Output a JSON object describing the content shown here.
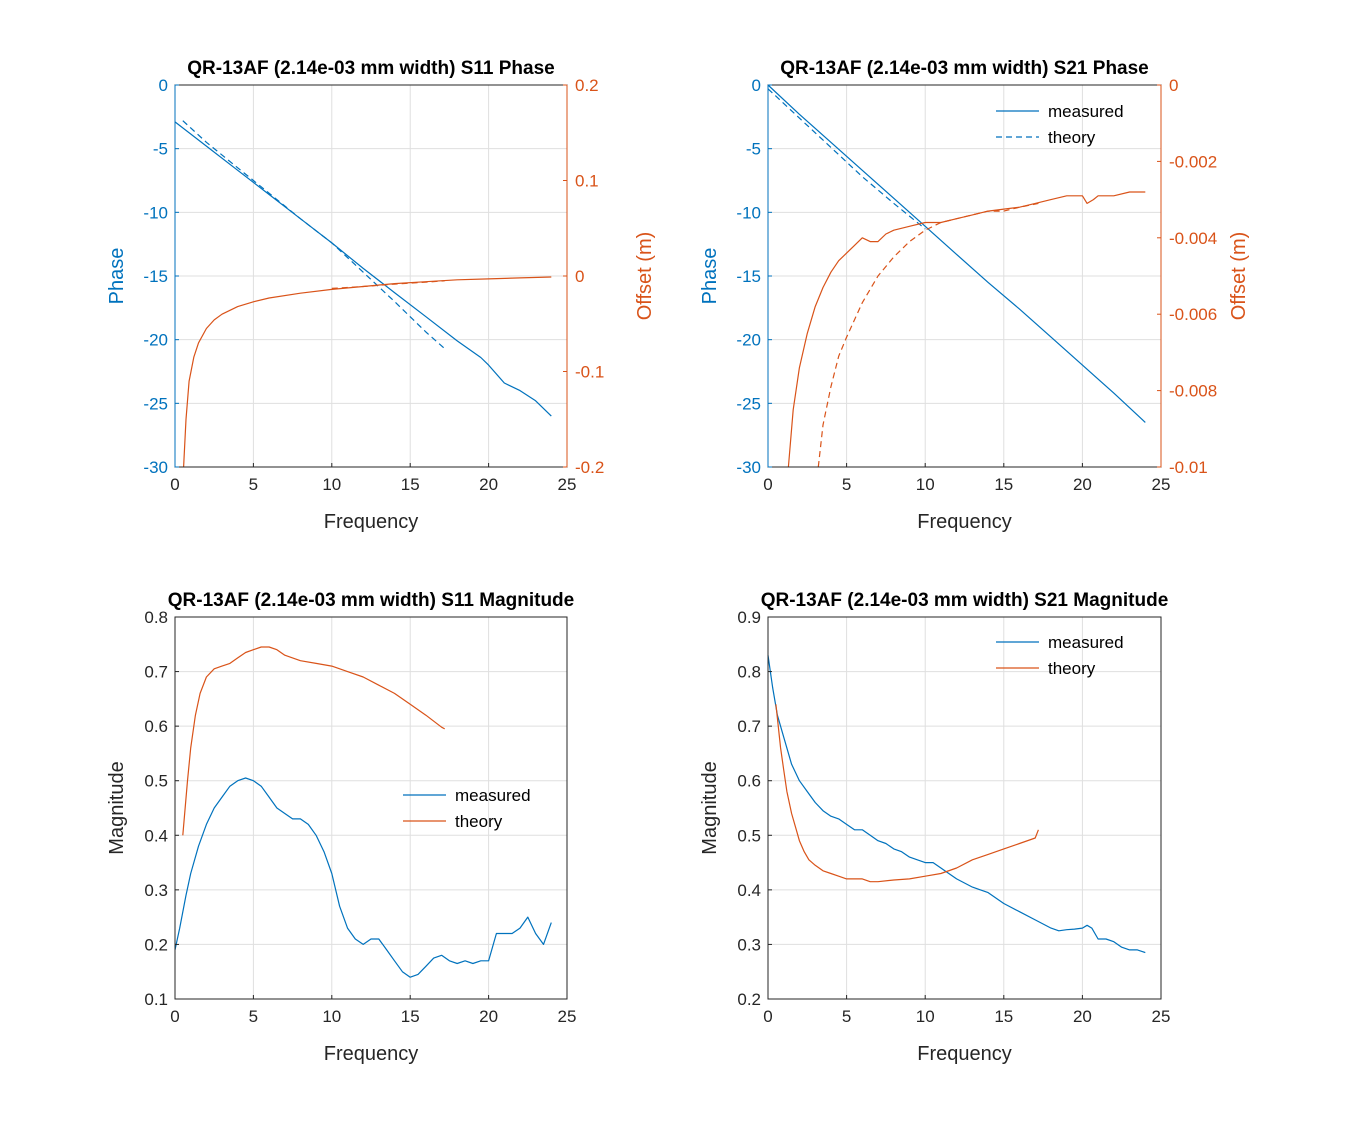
{
  "colors": {
    "blue": "#0072BD",
    "orange": "#D95319"
  },
  "chart_data": [
    {
      "type": "line",
      "title": "QR-13AF (2.14e-03 mm width) S11 Phase",
      "xlabel": "Frequency",
      "ylabel": "Phase",
      "y2label": "Offset (m)",
      "xlim": [
        0,
        25
      ],
      "ylim": [
        -30,
        0
      ],
      "y2lim": [
        -0.2,
        0.2
      ],
      "xticks": [
        "0",
        "5",
        "10",
        "15",
        "20",
        "25"
      ],
      "yticks": [
        "0",
        "-5",
        "-10",
        "-15",
        "-20",
        "-25",
        "-30"
      ],
      "y2ticks": [
        "0.2",
        "0.1",
        "0",
        "-0.1",
        "-0.2"
      ],
      "grid": true,
      "series": [
        {
          "axis": "left",
          "style": "solid",
          "color": "#0072BD",
          "x": [
            0,
            2,
            4,
            6,
            8,
            10,
            12,
            14,
            16,
            18,
            19.5,
            20,
            21,
            22,
            23,
            24
          ],
          "y": [
            -2.9,
            -4.8,
            -6.7,
            -8.6,
            -10.5,
            -12.4,
            -14.4,
            -16.3,
            -18.2,
            -20.1,
            -21.4,
            -22.0,
            -23.4,
            -24.0,
            -24.8,
            -26.0
          ]
        },
        {
          "axis": "left",
          "style": "dashed",
          "color": "#0072BD",
          "x": [
            0.5,
            2,
            4,
            6,
            8,
            10,
            12,
            14,
            16,
            17.2
          ],
          "y": [
            -2.8,
            -4.5,
            -6.5,
            -8.5,
            -10.5,
            -12.4,
            -14.7,
            -17.0,
            -19.4,
            -20.7
          ]
        },
        {
          "axis": "right",
          "style": "solid",
          "color": "#D95319",
          "x": [
            0.55,
            0.7,
            0.9,
            1.2,
            1.5,
            2,
            2.5,
            3,
            4,
            5,
            6,
            8,
            10,
            12,
            14,
            16,
            18,
            20,
            22,
            24
          ],
          "y": [
            -0.2,
            -0.15,
            -0.11,
            -0.085,
            -0.07,
            -0.055,
            -0.046,
            -0.04,
            -0.032,
            -0.027,
            -0.023,
            -0.018,
            -0.014,
            -0.011,
            -0.008,
            -0.006,
            -0.004,
            -0.003,
            -0.002,
            -0.001
          ]
        },
        {
          "axis": "right",
          "style": "dashed",
          "color": "#D95319",
          "x": [
            10,
            12,
            14,
            16,
            17.2
          ],
          "y": [
            -0.013,
            -0.011,
            -0.0085,
            -0.0065,
            -0.005
          ]
        }
      ]
    },
    {
      "type": "line",
      "title": "QR-13AF (2.14e-03 mm width) S21 Phase",
      "xlabel": "Frequency",
      "ylabel": "Phase",
      "y2label": "Offset (m)",
      "xlim": [
        0,
        25
      ],
      "ylim": [
        -30,
        0
      ],
      "y2lim": [
        -0.01,
        0
      ],
      "xticks": [
        "0",
        "5",
        "10",
        "15",
        "20",
        "25"
      ],
      "yticks": [
        "0",
        "-5",
        "-10",
        "-15",
        "-20",
        "-25",
        "-30"
      ],
      "y2ticks": [
        "0",
        "-0.002",
        "-0.004",
        "-0.006",
        "-0.008",
        "-0.01"
      ],
      "grid": true,
      "legend": {
        "location": "top-right",
        "entries": [
          "measured",
          "theory"
        ]
      },
      "series": [
        {
          "name": "measured",
          "axis": "left",
          "style": "solid",
          "color": "#0072BD",
          "x": [
            0,
            2,
            4,
            6,
            8,
            10,
            12,
            14,
            16,
            18,
            20,
            22,
            24
          ],
          "y": [
            0,
            -2.3,
            -4.5,
            -6.7,
            -8.9,
            -11.1,
            -13.3,
            -15.5,
            -17.6,
            -19.8,
            -22.0,
            -24.2,
            -26.5
          ]
        },
        {
          "name": "theory",
          "axis": "left",
          "style": "dashed",
          "color": "#0072BD",
          "x": [
            0,
            2,
            4,
            6,
            8,
            10
          ],
          "y": [
            -0.3,
            -2.6,
            -4.9,
            -7.2,
            -9.3,
            -11.3
          ]
        },
        {
          "axis": "right",
          "style": "solid",
          "color": "#D95319",
          "x": [
            1.3,
            1.6,
            2,
            2.5,
            3,
            3.5,
            4,
            4.5,
            5,
            5.5,
            6,
            6.5,
            7,
            7.5,
            8,
            9,
            10,
            11,
            12,
            13,
            14,
            15,
            16,
            17,
            18,
            19,
            20,
            20.3,
            20.7,
            21,
            22,
            23,
            24
          ],
          "y": [
            -0.01,
            -0.0085,
            -0.0074,
            -0.0065,
            -0.0058,
            -0.0053,
            -0.0049,
            -0.0046,
            -0.0044,
            -0.0042,
            -0.004,
            -0.0041,
            -0.0041,
            -0.0039,
            -0.0038,
            -0.0037,
            -0.0036,
            -0.0036,
            -0.0035,
            -0.0034,
            -0.0033,
            -0.00325,
            -0.0032,
            -0.0031,
            -0.003,
            -0.0029,
            -0.0029,
            -0.0031,
            -0.003,
            -0.0029,
            -0.0029,
            -0.0028,
            -0.0028
          ]
        },
        {
          "axis": "right",
          "style": "dashed",
          "color": "#D95319",
          "x": [
            3.2,
            3.5,
            4,
            4.5,
            5,
            6,
            7,
            8,
            9,
            10,
            11,
            12,
            13,
            14,
            15,
            16,
            17.2
          ],
          "y": [
            -0.01,
            -0.0089,
            -0.0079,
            -0.0071,
            -0.0066,
            -0.0057,
            -0.005,
            -0.0045,
            -0.0041,
            -0.0038,
            -0.0036,
            -0.0035,
            -0.0034,
            -0.0033,
            -0.0033,
            -0.0032,
            -0.0031
          ]
        }
      ]
    },
    {
      "type": "line",
      "title": "QR-13AF (2.14e-03 mm width) S11 Magnitude",
      "xlabel": "Frequency",
      "ylabel": "Magnitude",
      "xlim": [
        0,
        25
      ],
      "ylim": [
        0.1,
        0.8
      ],
      "xticks": [
        "0",
        "5",
        "10",
        "15",
        "20",
        "25"
      ],
      "yticks": [
        "0.8",
        "0.7",
        "0.6",
        "0.5",
        "0.4",
        "0.3",
        "0.2",
        "0.1"
      ],
      "grid": true,
      "legend": {
        "location": "right",
        "entries": [
          "measured",
          "theory"
        ]
      },
      "series": [
        {
          "name": "measured",
          "style": "solid",
          "color": "#0072BD",
          "x": [
            0,
            0.3,
            0.7,
            1,
            1.5,
            2,
            2.5,
            3,
            3.5,
            4,
            4.5,
            5,
            5.5,
            6,
            6.5,
            7,
            7.5,
            8,
            8.5,
            9,
            9.5,
            10,
            10.5,
            11,
            11.5,
            12,
            12.5,
            13,
            13.5,
            14,
            14.5,
            15,
            15.5,
            16,
            16.5,
            17,
            17.5,
            18,
            18.5,
            19,
            19.5,
            20,
            20.5,
            21,
            21.5,
            22,
            22.5,
            23,
            23.5,
            24
          ],
          "y": [
            0.19,
            0.23,
            0.29,
            0.33,
            0.38,
            0.42,
            0.45,
            0.47,
            0.49,
            0.5,
            0.505,
            0.5,
            0.49,
            0.47,
            0.45,
            0.44,
            0.43,
            0.43,
            0.42,
            0.4,
            0.37,
            0.33,
            0.27,
            0.23,
            0.21,
            0.2,
            0.21,
            0.21,
            0.19,
            0.17,
            0.15,
            0.14,
            0.145,
            0.16,
            0.175,
            0.18,
            0.17,
            0.165,
            0.17,
            0.165,
            0.17,
            0.17,
            0.22,
            0.22,
            0.22,
            0.23,
            0.25,
            0.22,
            0.2,
            0.24
          ]
        },
        {
          "name": "theory",
          "style": "solid",
          "color": "#D95319",
          "x": [
            0.5,
            0.8,
            1,
            1.3,
            1.6,
            2,
            2.5,
            3,
            3.5,
            4,
            4.5,
            5,
            5.5,
            6,
            6.5,
            7,
            7.5,
            8,
            9,
            10,
            11,
            12,
            13,
            14,
            15,
            16,
            17,
            17.2
          ],
          "y": [
            0.4,
            0.5,
            0.56,
            0.62,
            0.66,
            0.69,
            0.705,
            0.71,
            0.715,
            0.725,
            0.735,
            0.74,
            0.745,
            0.745,
            0.74,
            0.73,
            0.725,
            0.72,
            0.715,
            0.71,
            0.7,
            0.69,
            0.675,
            0.66,
            0.64,
            0.62,
            0.598,
            0.595
          ]
        }
      ]
    },
    {
      "type": "line",
      "title": "QR-13AF (2.14e-03 mm width) S21 Magnitude",
      "xlabel": "Frequency",
      "ylabel": "Magnitude",
      "xlim": [
        0,
        25
      ],
      "ylim": [
        0.2,
        0.9
      ],
      "xticks": [
        "0",
        "5",
        "10",
        "15",
        "20",
        "25"
      ],
      "yticks": [
        "0.9",
        "0.8",
        "0.7",
        "0.6",
        "0.5",
        "0.4",
        "0.3",
        "0.2"
      ],
      "grid": true,
      "legend": {
        "location": "top-right",
        "entries": [
          "measured",
          "theory"
        ]
      },
      "series": [
        {
          "name": "measured",
          "style": "solid",
          "color": "#0072BD",
          "x": [
            0,
            0.3,
            0.6,
            1,
            1.5,
            2,
            2.5,
            3,
            3.5,
            4,
            4.5,
            5,
            5.5,
            6,
            6.5,
            7,
            7.5,
            8,
            8.5,
            9,
            9.5,
            10,
            10.5,
            11,
            11.5,
            12,
            13,
            14,
            15,
            16,
            17,
            18,
            18.5,
            19,
            19.5,
            20,
            20.3,
            20.6,
            21,
            21.5,
            22,
            22.5,
            23,
            23.5,
            24
          ],
          "y": [
            0.83,
            0.77,
            0.72,
            0.68,
            0.63,
            0.6,
            0.58,
            0.56,
            0.545,
            0.535,
            0.53,
            0.52,
            0.51,
            0.51,
            0.5,
            0.49,
            0.485,
            0.475,
            0.47,
            0.46,
            0.455,
            0.45,
            0.45,
            0.44,
            0.43,
            0.42,
            0.405,
            0.395,
            0.375,
            0.36,
            0.345,
            0.33,
            0.325,
            0.327,
            0.328,
            0.33,
            0.335,
            0.33,
            0.31,
            0.31,
            0.305,
            0.295,
            0.29,
            0.29,
            0.285
          ]
        },
        {
          "name": "theory",
          "style": "solid",
          "color": "#D95319",
          "x": [
            0.5,
            0.8,
            1,
            1.2,
            1.5,
            1.8,
            2,
            2.3,
            2.6,
            3,
            3.5,
            4,
            4.5,
            5,
            5.5,
            6,
            6.5,
            7,
            8,
            9,
            10,
            11,
            12,
            13,
            14,
            15,
            16,
            17,
            17.2
          ],
          "y": [
            0.74,
            0.66,
            0.62,
            0.58,
            0.54,
            0.51,
            0.49,
            0.47,
            0.455,
            0.445,
            0.435,
            0.43,
            0.425,
            0.42,
            0.42,
            0.42,
            0.415,
            0.415,
            0.418,
            0.42,
            0.425,
            0.43,
            0.44,
            0.455,
            0.465,
            0.475,
            0.485,
            0.495,
            0.51
          ]
        }
      ]
    }
  ]
}
